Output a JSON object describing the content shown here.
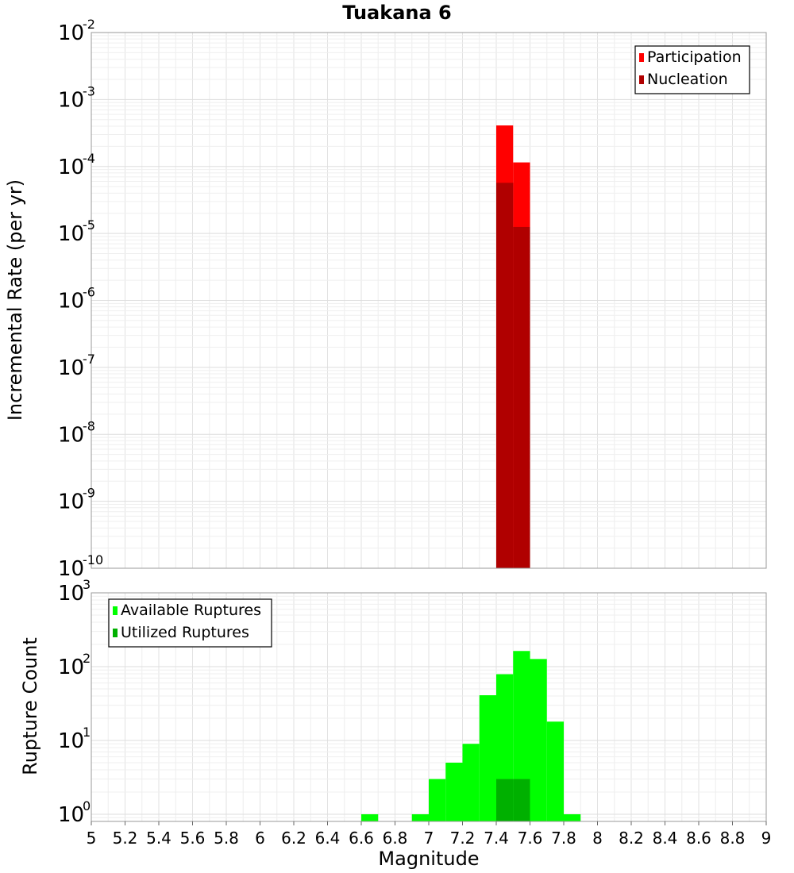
{
  "chart_data": [
    {
      "type": "bar",
      "title": "Tuakana 6",
      "xlabel": "",
      "ylabel": "Incremental Rate (per yr)",
      "y_scale": "log",
      "ylim": [
        1e-10,
        0.01
      ],
      "xlim": [
        5,
        9
      ],
      "y_ticks": [
        {
          "base": "10",
          "exp": "-2"
        },
        {
          "base": "10",
          "exp": "-3"
        },
        {
          "base": "10",
          "exp": "-4"
        },
        {
          "base": "10",
          "exp": "-5"
        },
        {
          "base": "10",
          "exp": "-6"
        },
        {
          "base": "10",
          "exp": "-7"
        },
        {
          "base": "10",
          "exp": "-8"
        },
        {
          "base": "10",
          "exp": "-9"
        },
        {
          "base": "10",
          "exp": "-10"
        }
      ],
      "grid": true,
      "legend_position": "top-right",
      "series": [
        {
          "name": "Participation",
          "color": "#ff0000",
          "x": [
            7.45,
            7.55
          ],
          "values": [
            0.00041,
            0.000115
          ]
        },
        {
          "name": "Nucleation",
          "color": "#b00000",
          "x": [
            7.45,
            7.55
          ],
          "values": [
            5.7e-05,
            1.25e-05
          ]
        }
      ]
    },
    {
      "type": "bar",
      "title": "",
      "xlabel": "Magnitude",
      "ylabel": "Rupture Count",
      "y_scale": "log",
      "ylim": [
        0.8,
        1000
      ],
      "xlim": [
        5,
        9
      ],
      "y_ticks": [
        {
          "base": "10",
          "exp": "3",
          "value": 1000
        },
        {
          "base": "10",
          "exp": "2",
          "value": 100
        },
        {
          "base": "10",
          "exp": "1",
          "value": 10
        },
        {
          "base": "10",
          "exp": "0",
          "value": 1
        }
      ],
      "x_ticks": [
        "5",
        "5.2",
        "5.4",
        "5.6",
        "5.8",
        "6",
        "6.2",
        "6.4",
        "6.6",
        "6.8",
        "7",
        "7.2",
        "7.4",
        "7.6",
        "7.8",
        "8",
        "8.2",
        "8.4",
        "8.6",
        "8.8",
        "9"
      ],
      "grid": true,
      "legend_position": "top-left",
      "series": [
        {
          "name": "Available Ruptures",
          "color": "#00ff00",
          "x": [
            6.65,
            6.95,
            7.05,
            7.15,
            7.25,
            7.35,
            7.45,
            7.55,
            7.65,
            7.75,
            7.85
          ],
          "values": [
            1,
            1,
            3,
            5,
            9,
            41,
            79,
            163,
            127,
            18,
            1
          ]
        },
        {
          "name": "Utilized Ruptures",
          "color": "#00b000",
          "x": [
            7.45,
            7.55
          ],
          "values": [
            3,
            3
          ]
        }
      ]
    }
  ]
}
